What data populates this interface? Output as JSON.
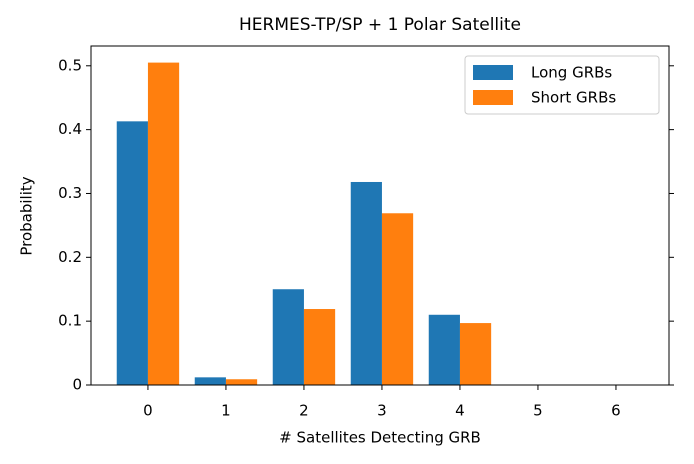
{
  "chart_data": {
    "type": "bar",
    "title": "HERMES-TP/SP + 1 Polar Satellite",
    "x_label": "# Satellites Detecting GRB",
    "y_label": "Probability",
    "x": [
      0,
      1,
      2,
      3,
      4,
      5,
      6
    ],
    "series": [
      {
        "name": "Long GRBs",
        "color": "#1f77b4",
        "values": [
          0.413,
          0.012,
          0.15,
          0.318,
          0.11,
          0,
          0
        ]
      },
      {
        "name": "Short GRBs",
        "color": "#ff7f0e",
        "values": [
          0.505,
          0.009,
          0.119,
          0.269,
          0.097,
          0,
          0
        ]
      }
    ],
    "bar_width": 0.4,
    "xlim": [
      -0.73,
      6.68
    ],
    "xticks": [
      0,
      1,
      2,
      3,
      4,
      5,
      6
    ],
    "ylim": [
      0,
      0.531
    ],
    "yticks": [
      0.0,
      0.1,
      0.2,
      0.3,
      0.4,
      0.5
    ],
    "legend": "upper right"
  }
}
